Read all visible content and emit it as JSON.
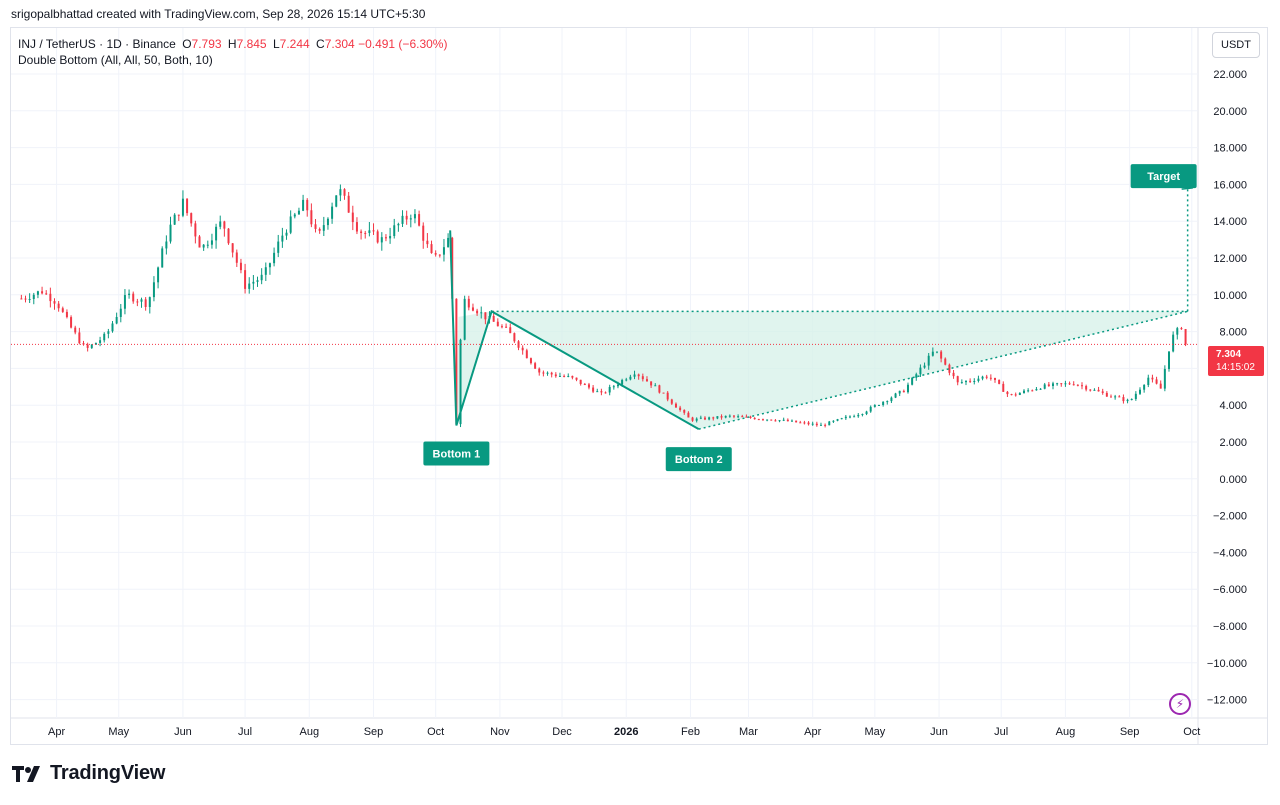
{
  "attribution": "srigopalbhattad created with TradingView.com, Sep 28, 2026 15:14 UTC+5:30",
  "legend": {
    "symbol": "INJ / TetherUS · 1D · Binance",
    "o_label": "O",
    "o_value": "7.793",
    "h_label": "H",
    "h_value": "7.845",
    "l_label": "L",
    "l_value": "7.244",
    "c_label": "C",
    "c_value": "7.304",
    "change": "−0.491 (−6.30%)",
    "indicator": "Double Bottom (All, All, 50, Both, 10)"
  },
  "unit_button": "USDT",
  "price_badge": {
    "price": "7.304",
    "countdown": "14:15:02"
  },
  "brand": "TradingView",
  "colors": {
    "up": "#089981",
    "down": "#f23645",
    "pattern": "#089981",
    "zone_fill": "#d5f0e8",
    "grid": "#f0f3fa",
    "current_price": "#f23645"
  },
  "chart_data": {
    "type": "candlestick",
    "title": "INJ / TetherUS · 1D · Binance",
    "x_ticks": [
      "Apr",
      "May",
      "Jun",
      "Jul",
      "Aug",
      "Sep",
      "Oct",
      "Nov",
      "Dec",
      "2026",
      "Feb",
      "Mar",
      "Apr",
      "May",
      "Jun",
      "Jul",
      "Aug",
      "Sep",
      "Oct"
    ],
    "y_ticks": [
      "22.000",
      "20.000",
      "18.000",
      "16.000",
      "14.000",
      "12.000",
      "10.000",
      "8.000",
      "6.000",
      "4.000",
      "2.000",
      "0.000",
      "−2.000",
      "−4.000",
      "−6.000",
      "−8.000",
      "−10.000",
      "−12.000"
    ],
    "y_values": [
      22,
      20,
      18,
      16,
      14,
      12,
      10,
      8,
      6,
      4,
      2,
      0,
      -2,
      -4,
      -6,
      -8,
      -10,
      -12
    ],
    "ylim": [
      -13,
      24.5
    ],
    "price_path": [
      [
        "2025-03-15",
        9.8
      ],
      [
        "2025-03-25",
        10.2
      ],
      [
        "2025-04-01",
        9.6
      ],
      [
        "2025-04-08",
        8.2
      ],
      [
        "2025-04-15",
        7.0
      ],
      [
        "2025-04-25",
        7.8
      ],
      [
        "2025-05-05",
        10.0
      ],
      [
        "2025-05-15",
        9.5
      ],
      [
        "2025-05-25",
        13.5
      ],
      [
        "2025-06-01",
        15.0
      ],
      [
        "2025-06-10",
        12.5
      ],
      [
        "2025-06-20",
        14.0
      ],
      [
        "2025-07-01",
        10.5
      ],
      [
        "2025-07-10",
        11.0
      ],
      [
        "2025-07-20",
        13.5
      ],
      [
        "2025-07-30",
        15.0
      ],
      [
        "2025-08-05",
        13.0
      ],
      [
        "2025-08-15",
        15.8
      ],
      [
        "2025-08-25",
        13.5
      ],
      [
        "2025-09-05",
        13.0
      ],
      [
        "2025-09-20",
        14.5
      ],
      [
        "2025-09-30",
        11.8
      ],
      [
        "2025-10-08",
        13.2
      ],
      [
        "2025-10-11",
        3.0
      ],
      [
        "2025-10-14",
        9.8
      ],
      [
        "2025-10-25",
        8.8
      ],
      [
        "2025-11-05",
        8.0
      ],
      [
        "2025-11-20",
        5.8
      ],
      [
        "2025-12-05",
        5.5
      ],
      [
        "2025-12-20",
        4.6
      ],
      [
        "2026-01-05",
        5.8
      ],
      [
        "2026-01-15",
        5.0
      ],
      [
        "2026-02-01",
        3.2
      ],
      [
        "2026-02-20",
        3.4
      ],
      [
        "2026-03-15",
        3.2
      ],
      [
        "2026-04-05",
        2.9
      ],
      [
        "2026-04-25",
        3.6
      ],
      [
        "2026-05-15",
        4.8
      ],
      [
        "2026-05-30",
        7.0
      ],
      [
        "2026-06-10",
        5.2
      ],
      [
        "2026-06-25",
        5.6
      ],
      [
        "2026-07-05",
        4.5
      ],
      [
        "2026-07-20",
        5.0
      ],
      [
        "2026-08-05",
        5.2
      ],
      [
        "2026-08-20",
        4.6
      ],
      [
        "2026-09-01",
        4.2
      ],
      [
        "2026-09-10",
        5.5
      ],
      [
        "2026-09-16",
        4.9
      ],
      [
        "2026-09-21",
        7.6
      ],
      [
        "2026-09-26",
        8.3
      ],
      [
        "2026-09-28",
        7.3
      ]
    ],
    "pattern": {
      "name": "Double Bottom",
      "points": [
        [
          "2025-10-08",
          13.5
        ],
        [
          "2025-10-11",
          2.9
        ],
        [
          "2025-10-28",
          9.1
        ],
        [
          "2026-02-05",
          2.7
        ]
      ],
      "neckline": 9.1,
      "target": 15.8,
      "labels": [
        "Bottom 1",
        "Bottom 2",
        "Target"
      ]
    },
    "current_price": 7.304
  }
}
